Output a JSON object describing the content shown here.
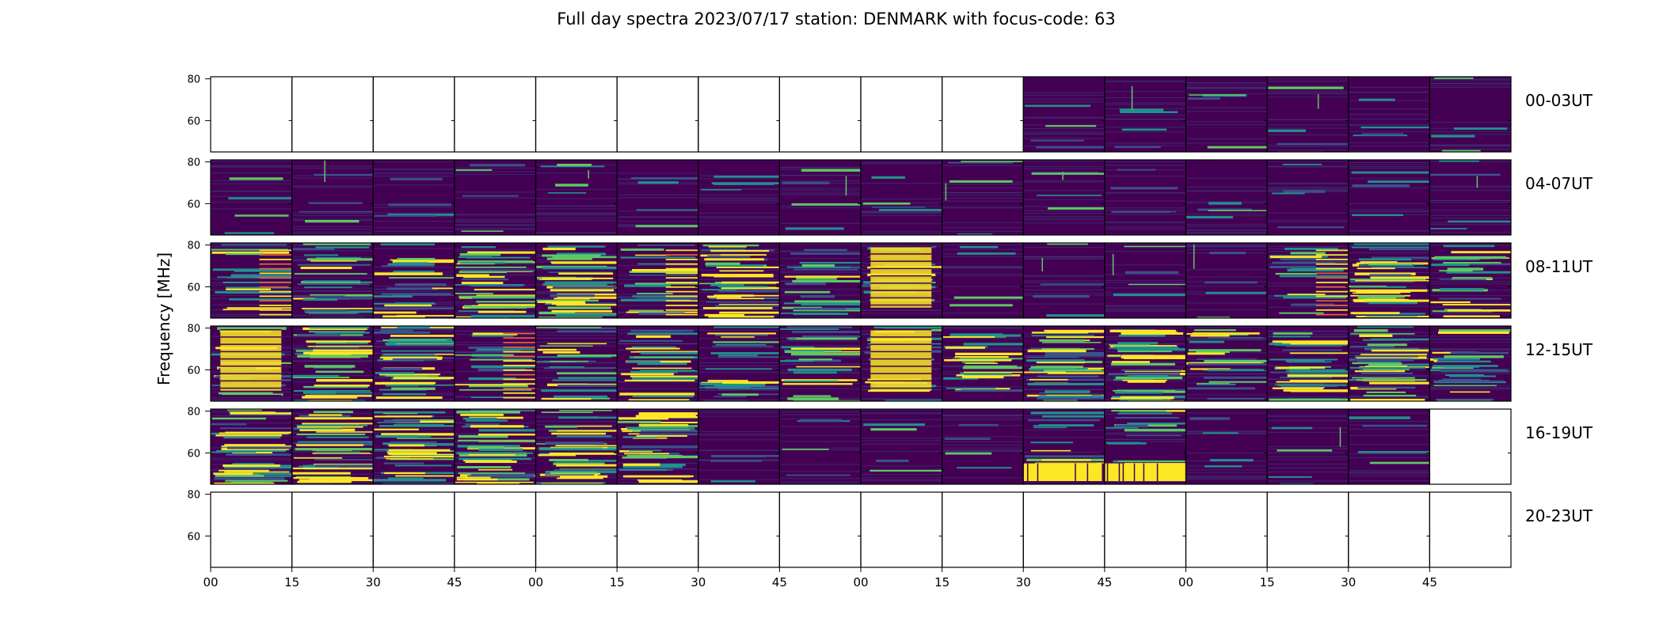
{
  "chart_data": {
    "type": "heatmap",
    "title": "Full day spectra 2023/07/17 station: DENMARK with focus-code: 63",
    "ylabel": "Frequency [MHz]",
    "ylim": [
      45,
      81
    ],
    "y_ticks": [
      "80",
      "60"
    ],
    "x_ticks": [
      "00",
      "15",
      "30",
      "45",
      "00",
      "15",
      "30",
      "45",
      "00",
      "15",
      "30",
      "45",
      "00",
      "15",
      "30",
      "45"
    ],
    "rows": [
      {
        "label": "00-03UT",
        "panels": [
          "empty",
          "empty",
          "empty",
          "empty",
          "empty",
          "empty",
          "empty",
          "empty",
          "empty",
          "empty",
          "quiet",
          "quiet",
          "quiet",
          "quiet",
          "quiet",
          "quiet"
        ]
      },
      {
        "label": "04-07UT",
        "panels": [
          "quiet",
          "quiet",
          "quiet",
          "quiet",
          "quiet",
          "quiet",
          "quiet",
          "quiet",
          "quiet",
          "quiet",
          "quiet",
          "quiet",
          "quiet",
          "quiet",
          "quiet",
          "quiet"
        ]
      },
      {
        "label": "08-11UT",
        "panels": [
          "rfi-right",
          "medium",
          "medium",
          "busy",
          "busy",
          "rfi-right",
          "busy",
          "medium",
          "burst",
          "quiet",
          "quiet",
          "quiet",
          "quiet",
          "rfi-right",
          "busy",
          "medium"
        ]
      },
      {
        "label": "12-15UT",
        "panels": [
          "burst",
          "busy",
          "busy",
          "rfi-right",
          "medium",
          "medium",
          "medium",
          "medium",
          "burst",
          "medium",
          "busy",
          "busy",
          "medium",
          "busy",
          "busy",
          "medium"
        ]
      },
      {
        "label": "16-19UT",
        "panels": [
          "busy",
          "busy",
          "busy",
          "busy",
          "busy",
          "busy",
          "quiet",
          "quiet",
          "quiet",
          "quiet",
          "low-band",
          "low-band",
          "quiet",
          "quiet",
          "quiet",
          "empty"
        ]
      },
      {
        "label": "20-23UT",
        "panels": [
          "empty",
          "empty",
          "empty",
          "empty",
          "empty",
          "empty",
          "empty",
          "empty",
          "empty",
          "empty",
          "empty",
          "empty",
          "empty",
          "empty",
          "empty",
          "empty"
        ]
      }
    ],
    "colormap": [
      "#440154",
      "#3b528b",
      "#21918c",
      "#5ec962",
      "#fde725"
    ],
    "grid": false
  }
}
